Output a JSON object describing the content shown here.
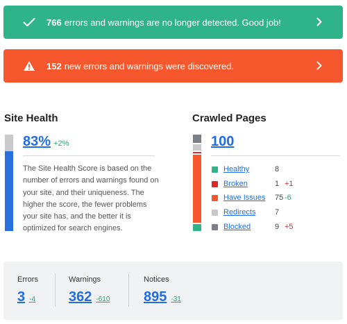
{
  "banners": {
    "success": {
      "count": "766",
      "text": "errors and warnings are no longer detected. Good job!"
    },
    "danger": {
      "count": "152",
      "text": "new errors and warnings were discovered."
    }
  },
  "site_health": {
    "title": "Site Health",
    "score": "83%",
    "score_value": 83,
    "delta": "+2%",
    "description": "The Site Health Score is based on the number of errors and warnings found on your site, and their uniqueness. The higher the score, the fewer problems your site has, and the better it is optimized for search engines."
  },
  "crawled_pages": {
    "title": "Crawled Pages",
    "total": "100",
    "items": [
      {
        "label": "Healthy",
        "count": "8",
        "value": 8,
        "change": "",
        "color": "#2fb48a",
        "change_class": ""
      },
      {
        "label": "Broken",
        "count": "1",
        "value": 1,
        "change": "+1",
        "color": "#e3262b",
        "change_class": "neg-bad"
      },
      {
        "label": "Have Issues",
        "count": "75",
        "value": 75,
        "change": "-6",
        "color": "#f6572c",
        "change_class": "neg-good"
      },
      {
        "label": "Redirects",
        "count": "7",
        "value": 7,
        "change": "",
        "color": "#c9c9cc",
        "change_class": ""
      },
      {
        "label": "Blocked",
        "count": "9",
        "value": 9,
        "change": "+5",
        "color": "#7d7f88",
        "change_class": "neg-bad"
      }
    ]
  },
  "summary": {
    "errors": {
      "label": "Errors",
      "value": "3",
      "delta": "-4"
    },
    "warnings": {
      "label": "Warnings",
      "value": "362",
      "delta": "-610"
    },
    "notices": {
      "label": "Notices",
      "value": "895",
      "delta": "-31"
    }
  },
  "colors": {
    "accent": "#1f6de0",
    "success": "#2fb48a",
    "danger": "#f6572c",
    "positive": "#2ea36f",
    "negative": "#e3262b"
  }
}
